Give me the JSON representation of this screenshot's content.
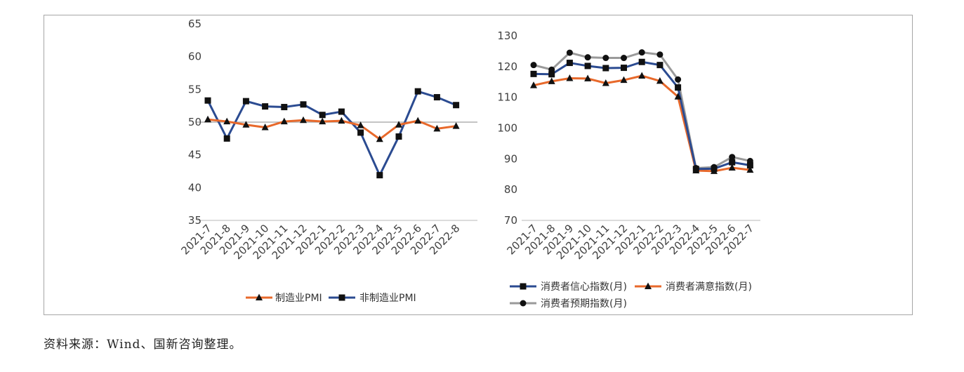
{
  "source_note": "资料来源：Wind、国新咨询整理。",
  "colors": {
    "orange": "#e8692b",
    "blue": "#2b4b91",
    "gray": "#9a9a9a",
    "marker": "#111111",
    "axis": "#c8c8c8"
  },
  "chart_data": [
    {
      "type": "line",
      "categories": [
        "2021-7",
        "2021-8",
        "2021-9",
        "2021-10",
        "2021-11",
        "2021-12",
        "2022-1",
        "2022-2",
        "2022-3",
        "2022-4",
        "2022-5",
        "2022-6",
        "2022-7",
        "2022-8"
      ],
      "ylim": [
        35,
        65
      ],
      "yticks": [
        35,
        40,
        45,
        50,
        55,
        60,
        65
      ],
      "reference_line": 50,
      "legend": "bottom",
      "grid": false,
      "series": [
        {
          "name": "制造业PMI",
          "color": "orange",
          "marker": "triangle",
          "values": [
            50.4,
            50.1,
            49.6,
            49.2,
            50.1,
            50.3,
            50.1,
            50.2,
            49.5,
            47.4,
            49.6,
            50.2,
            49.0,
            49.4
          ]
        },
        {
          "name": "非制造业PMI",
          "color": "blue",
          "marker": "square",
          "values": [
            53.3,
            47.5,
            53.2,
            52.4,
            52.3,
            52.7,
            51.1,
            51.6,
            48.4,
            41.9,
            47.8,
            54.7,
            53.8,
            52.6
          ]
        }
      ]
    },
    {
      "type": "line",
      "categories": [
        "2021-7",
        "2021-8",
        "2021-9",
        "2021-10",
        "2021-11",
        "2021-12",
        "2022-1",
        "2022-2",
        "2022-3",
        "2022-4",
        "2022-5",
        "2022-6",
        "2022-7"
      ],
      "ylim": [
        70,
        130
      ],
      "yticks": [
        70,
        80,
        90,
        100,
        110,
        120,
        130
      ],
      "legend": "bottom",
      "grid": false,
      "series": [
        {
          "name": "消费者信心指数(月)",
          "color": "blue",
          "marker": "square",
          "values": [
            117.6,
            117.5,
            121.2,
            120.2,
            119.5,
            119.6,
            121.5,
            120.5,
            113.2,
            86.7,
            86.8,
            88.9,
            87.9
          ]
        },
        {
          "name": "消费者满意指数(月)",
          "color": "orange",
          "marker": "triangle",
          "values": [
            113.9,
            115.2,
            116.2,
            116.1,
            114.6,
            115.6,
            117.0,
            115.3,
            110.2,
            86.2,
            86.0,
            87.1,
            86.4
          ]
        },
        {
          "name": "消费者预期指数(月)",
          "color": "gray",
          "marker": "circle",
          "values": [
            120.5,
            119.0,
            124.5,
            123.0,
            122.8,
            122.8,
            124.6,
            123.9,
            115.8,
            87.0,
            87.3,
            90.6,
            89.3
          ]
        }
      ]
    }
  ]
}
